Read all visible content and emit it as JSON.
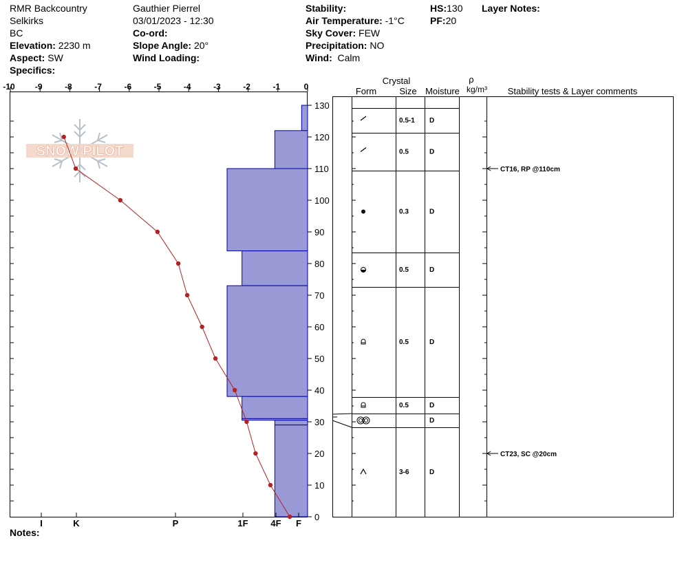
{
  "header": {
    "org": "RMR Backcountry",
    "range": "Selkirks",
    "province": "BC",
    "elevation_label": "Elevation:",
    "elevation": "2230 m",
    "aspect_label": "Aspect:",
    "aspect": "SW",
    "specifics_label": "Specifics:",
    "observer": "Gauthier Pierrel",
    "datetime": "03/01/2023 - 12:30",
    "coord_label": "Co-ord:",
    "slope_label": "Slope Angle:",
    "slope": "20°",
    "wind_loading_label": "Wind Loading:",
    "stability_label": "Stability:",
    "air_temp_label": "Air Temperature:",
    "air_temp": "-1°C",
    "sky_label": "Sky Cover:",
    "sky": "FEW",
    "precip_label": "Precipitation:",
    "precip": "NO",
    "wind_label": "Wind:",
    "wind": "Calm",
    "hs_label": "HS:",
    "hs": "130",
    "pf_label": "PF:",
    "pf": "20",
    "layer_notes_label": "Layer Notes:"
  },
  "notes_label": "Notes:",
  "logo_text": "SNOW PILOT",
  "table": {
    "col_crystal": "Crystal",
    "col_form": "Form",
    "col_size": "Size",
    "col_moisture": "Moisture",
    "col_rho": "ρ",
    "col_density_unit": "kg/m³",
    "col_comments": "Stability tests & Layer comments"
  },
  "colors": {
    "layer_fill": "#9999d5",
    "layer_stroke": "#0000aa",
    "temp_line": "#b22222"
  },
  "chart_data": {
    "type": "line",
    "temp_axis": {
      "ticks": [
        "-10",
        "-9",
        "-8",
        "-7",
        "-6",
        "-5",
        "-4",
        "-3",
        "-2",
        "-1",
        "0"
      ],
      "range": [
        -10,
        0
      ]
    },
    "height_axis": {
      "ticks": [
        "0",
        "10",
        "20",
        "30",
        "40",
        "50",
        "60",
        "70",
        "80",
        "90",
        "100",
        "110",
        "120",
        "130"
      ],
      "range": [
        0,
        130
      ]
    },
    "hardness_axis": {
      "labels": [
        "I",
        "K",
        "P",
        "1F",
        "4F",
        "F"
      ]
    },
    "temperature_profile": [
      {
        "height": 120,
        "temp": -8.2
      },
      {
        "height": 110,
        "temp": -7.8
      },
      {
        "height": 100,
        "temp": -6.3
      },
      {
        "height": 90,
        "temp": -5.05
      },
      {
        "height": 80,
        "temp": -4.35
      },
      {
        "height": 70,
        "temp": -4.05
      },
      {
        "height": 60,
        "temp": -3.55
      },
      {
        "height": 50,
        "temp": -3.1
      },
      {
        "height": 40,
        "temp": -2.45
      },
      {
        "height": 30,
        "temp": -2.05
      },
      {
        "height": 20,
        "temp": -1.75
      },
      {
        "height": 10,
        "temp": -1.25
      },
      {
        "height": 0,
        "temp": -0.6
      }
    ],
    "layers": [
      {
        "top": 130,
        "bottom": 122,
        "hardness": 0.2,
        "form": "decomposing",
        "size": "0.5-1",
        "moisture": "D"
      },
      {
        "top": 122,
        "bottom": 110,
        "hardness": 1.1,
        "form": "decomposing",
        "size": "0.5",
        "moisture": "D"
      },
      {
        "top": 110,
        "bottom": 84,
        "hardness": 2.7,
        "form": "rounded",
        "size": "0.3",
        "moisture": "D"
      },
      {
        "top": 84,
        "bottom": 73,
        "hardness": 2.2,
        "form": "mixed-rounded-faceted",
        "size": "0.5",
        "moisture": "D"
      },
      {
        "top": 73,
        "bottom": 38,
        "hardness": 2.7,
        "form": "faceted-rounding",
        "size": "0.5",
        "moisture": "D"
      },
      {
        "top": 38,
        "bottom": 31,
        "hardness": 2.2,
        "form": "faceted-rounding",
        "size": "0.5",
        "moisture": "D"
      },
      {
        "top": 31,
        "bottom": 30.5,
        "hardness": 2.2,
        "form": "melt-freeze",
        "size": "",
        "moisture": "D"
      },
      {
        "top": 30.5,
        "bottom": 29,
        "hardness": 1.1,
        "form": "melt-freeze",
        "size": "",
        "moisture": "D"
      },
      {
        "top": 29,
        "bottom": 0,
        "hardness": 1.1,
        "form": "depth-hoar",
        "size": "3-6",
        "moisture": "D"
      }
    ],
    "stability_tests": [
      {
        "height": 110,
        "text": "CT16, RP @110cm"
      },
      {
        "height": 20,
        "text": "CT23, SC @20cm"
      }
    ]
  }
}
